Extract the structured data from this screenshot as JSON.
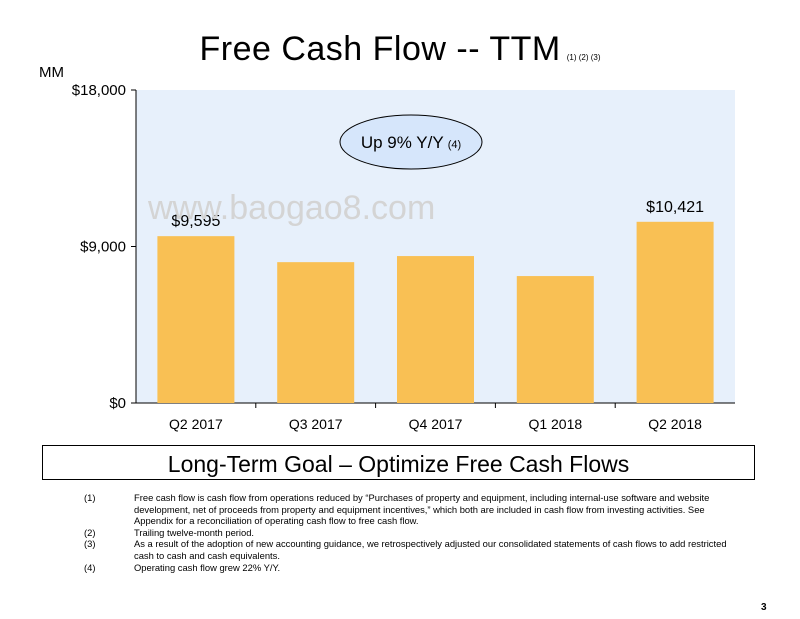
{
  "header": {
    "title": "Free Cash Flow -- TTM",
    "title_notes": "(1) (2) (3)",
    "unit": "MM"
  },
  "chart_data": {
    "type": "bar",
    "categories": [
      "Q2 2017",
      "Q3 2017",
      "Q4 2017",
      "Q1 2018",
      "Q2 2018"
    ],
    "values": [
      9595,
      8100,
      8450,
      7300,
      10421
    ],
    "data_labels": [
      "$9,595",
      "",
      "",
      "",
      "$10,421"
    ],
    "ylim": [
      0,
      18000
    ],
    "yticks": [
      0,
      9000,
      18000
    ],
    "ytick_labels": [
      "$0",
      "$9,000",
      "$18,000"
    ],
    "grid": false,
    "colors": {
      "bar": "#f9c054",
      "plot_bg": "#e7f0fb",
      "callout": "#d6e6fb"
    }
  },
  "callout": {
    "text": "Up 9% Y/Y",
    "note": "(4)"
  },
  "watermark": "www.baogao8.com",
  "goal": "Long-Term Goal – Optimize Free Cash Flows",
  "footnotes": [
    {
      "num": "(1)",
      "text": "Free cash flow is cash flow from operations reduced by “Purchases of property and equipment, including internal-use software and website development, net of proceeds from property and equipment incentives,” which both are included in cash flow from investing activities. See Appendix for a reconciliation of operating cash flow to free cash flow."
    },
    {
      "num": "(2)",
      "text": "Trailing twelve-month period."
    },
    {
      "num": "(3)",
      "text": "As a result of the adoption of new accounting guidance, we retrospectively adjusted our consolidated statements of cash flows to add restricted cash to cash and cash equivalents."
    },
    {
      "num": "(4)",
      "text": "Operating cash flow grew 22% Y/Y."
    }
  ],
  "page_number": "3"
}
